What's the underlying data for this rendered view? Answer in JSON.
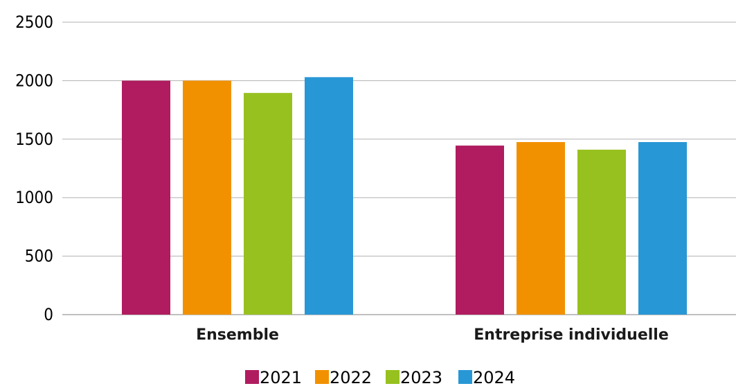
{
  "chart_data": {
    "type": "bar",
    "title": "",
    "xlabel": "",
    "ylabel": "",
    "categories": [
      "Ensemble",
      "Entreprise individuelle"
    ],
    "series": [
      {
        "name": "2021",
        "color": "#b01c5f",
        "values": [
          2000,
          1445
        ]
      },
      {
        "name": "2022",
        "color": "#f29100",
        "values": [
          2000,
          1475
        ]
      },
      {
        "name": "2023",
        "color": "#97c11f",
        "values": [
          1895,
          1410
        ]
      },
      {
        "name": "2024",
        "color": "#2897d6",
        "values": [
          2030,
          1475
        ]
      }
    ],
    "ylim": [
      0,
      2500
    ],
    "yticks": [
      0,
      500,
      1000,
      1500,
      2000,
      2500
    ],
    "ytick_labels": [
      "0",
      "500",
      "1000",
      "1500",
      "2000",
      "2500"
    ],
    "grid": true,
    "legend_position": "bottom-center"
  }
}
